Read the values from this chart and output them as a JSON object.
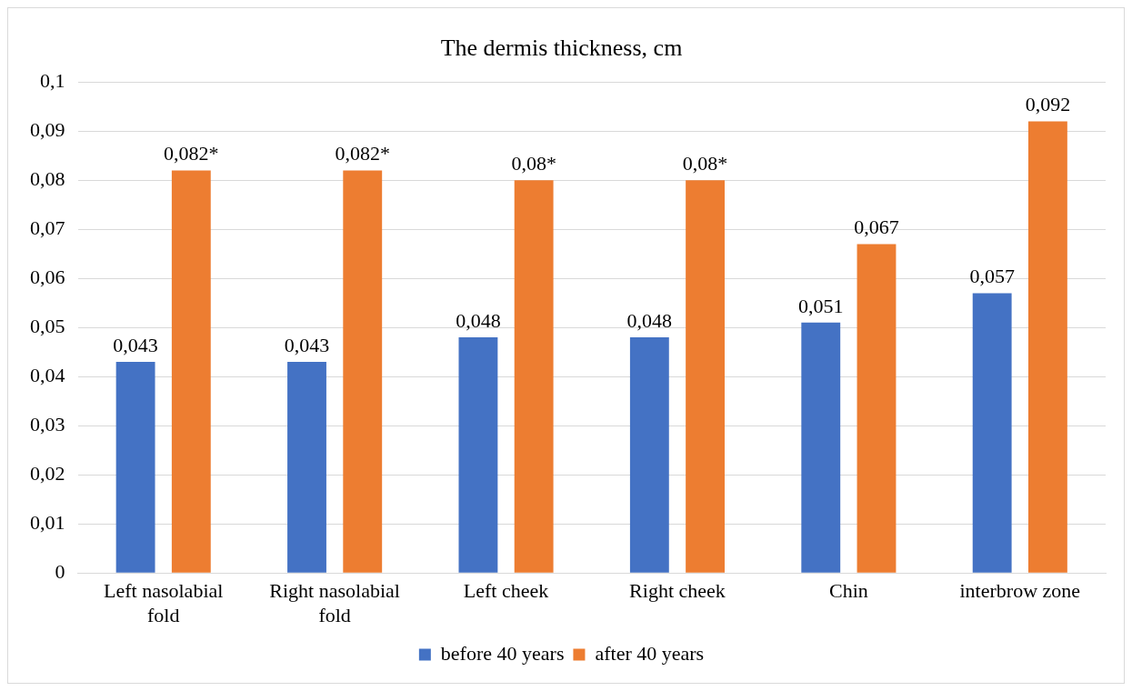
{
  "chart_data": {
    "type": "bar",
    "title": "The dermis thickness, cm",
    "categories": [
      "Left nasolabial fold",
      "Right nasolabial fold",
      "Left cheek",
      "Right cheek",
      "Chin",
      "interbrow zone"
    ],
    "series": [
      {
        "name": "before 40 years",
        "color": "#4472c4",
        "values": [
          0.043,
          0.043,
          0.048,
          0.048,
          0.051,
          0.057
        ],
        "value_labels": [
          "0,043",
          "0,043",
          "0,048",
          "0,048",
          "0,051",
          "0,057"
        ]
      },
      {
        "name": "after 40 years",
        "color": "#ed7d31",
        "values": [
          0.082,
          0.082,
          0.08,
          0.08,
          0.067,
          0.092
        ],
        "value_labels": [
          "0,082*",
          "0,082*",
          "0,08*",
          "0,08*",
          "0,067",
          "0,092"
        ]
      }
    ],
    "ylim": [
      0,
      0.1
    ],
    "yticks": [
      {
        "value": 0,
        "label": "0"
      },
      {
        "value": 0.01,
        "label": "0,01"
      },
      {
        "value": 0.02,
        "label": "0,02"
      },
      {
        "value": 0.03,
        "label": "0,03"
      },
      {
        "value": 0.04,
        "label": "0,04"
      },
      {
        "value": 0.05,
        "label": "0,05"
      },
      {
        "value": 0.06,
        "label": "0,06"
      },
      {
        "value": 0.07,
        "label": "0,07"
      },
      {
        "value": 0.08,
        "label": "0,08"
      },
      {
        "value": 0.09,
        "label": "0,09"
      },
      {
        "value": 0.1,
        "label": "0,1"
      }
    ],
    "grid": "y",
    "legend": "bottom"
  }
}
